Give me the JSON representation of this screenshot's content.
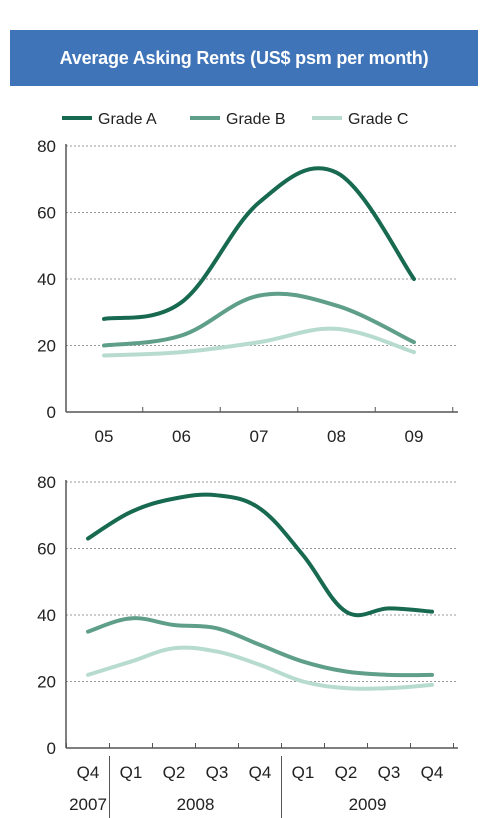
{
  "title": "Average Asking Rents (US$ psm per month)",
  "colors": {
    "title_bg": "#3f74b9",
    "grade_a": "#17694f",
    "grade_b": "#5f9f8a",
    "grade_c": "#b7dccf",
    "grid": "#9a9a9a",
    "axis": "#555555"
  },
  "legend": [
    {
      "label": "Grade A",
      "color": "#17694f"
    },
    {
      "label": "Grade B",
      "color": "#5f9f8a"
    },
    {
      "label": "Grade C",
      "color": "#b7dccf"
    }
  ],
  "chart_data": [
    {
      "type": "line",
      "title": "Average Asking Rents (US$ psm per month)",
      "categories": [
        "05",
        "06",
        "07",
        "08",
        "09"
      ],
      "ylim": [
        0,
        80
      ],
      "yticks": [
        0,
        20,
        40,
        60,
        80
      ],
      "grid": true,
      "legend_position": "top",
      "series": [
        {
          "name": "Grade A",
          "values": [
            28,
            33,
            63,
            72,
            40
          ]
        },
        {
          "name": "Grade B",
          "values": [
            20,
            23,
            35,
            32,
            21
          ]
        },
        {
          "name": "Grade C",
          "values": [
            17,
            18,
            21,
            25,
            18
          ]
        }
      ]
    },
    {
      "type": "line",
      "categories": [
        "Q4",
        "Q1",
        "Q2",
        "Q3",
        "Q4",
        "Q1",
        "Q2",
        "Q3",
        "Q4"
      ],
      "year_labels": [
        "2007",
        "2008",
        "2009"
      ],
      "ylim": [
        0,
        80
      ],
      "yticks": [
        0,
        20,
        40,
        60,
        80
      ],
      "grid": true,
      "series": [
        {
          "name": "Grade A",
          "values": [
            63,
            71,
            75,
            76,
            72,
            58,
            41,
            42,
            41
          ]
        },
        {
          "name": "Grade B",
          "values": [
            35,
            39,
            37,
            36,
            31,
            26,
            23,
            22,
            22
          ]
        },
        {
          "name": "Grade C",
          "values": [
            22,
            26,
            30,
            29,
            25,
            20,
            18,
            18,
            19
          ]
        }
      ]
    }
  ]
}
